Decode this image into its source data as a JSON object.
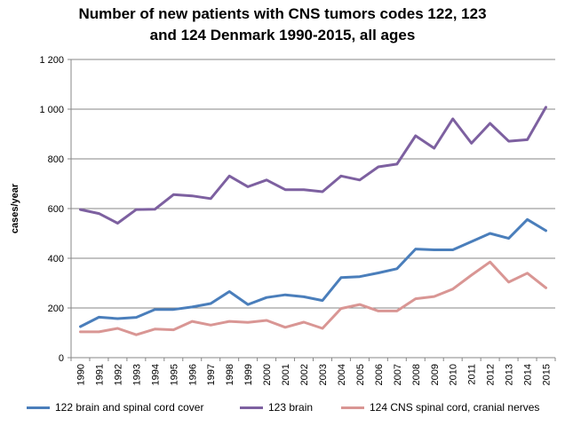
{
  "title_line1": "Number of new patients with CNS tumors codes 122, 123",
  "title_line2": "and 124 Denmark 1990-2015, all ages",
  "chart_data": {
    "type": "line",
    "title": "Number of new patients with CNS tumors codes 122, 123 and 124 Denmark 1990-2015, all ages",
    "xlabel": "",
    "ylabel": "cases/year",
    "ylim": [
      0,
      1200
    ],
    "yticks": [
      0,
      200,
      400,
      600,
      800,
      1000,
      1200
    ],
    "ytick_labels": [
      "0",
      "200",
      "400",
      "600",
      "800",
      "1 000",
      "1 200"
    ],
    "grid": "horizontal",
    "legend_position": "bottom",
    "x": [
      "1990",
      "1991",
      "1992",
      "1993",
      "1994",
      "1995",
      "1996",
      "1997",
      "1998",
      "1999",
      "2000",
      "2001",
      "2002",
      "2003",
      "2004",
      "2005",
      "2006",
      "2007",
      "2008",
      "2009",
      "2010",
      "2011",
      "2012",
      "2013",
      "2014",
      "2015"
    ],
    "series": [
      {
        "name": "122 brain and spinal cord cover",
        "color": "#4A7EBB",
        "values": [
          125,
          163,
          157,
          162,
          194,
          194,
          204,
          218,
          266,
          214,
          242,
          253,
          245,
          230,
          322,
          326,
          341,
          358,
          437,
          434,
          434,
          467,
          500,
          480,
          556,
          511
        ]
      },
      {
        "name": "123 brain",
        "color": "#7D60A0",
        "values": [
          596,
          580,
          541,
          596,
          597,
          656,
          651,
          640,
          731,
          688,
          715,
          676,
          676,
          668,
          731,
          715,
          768,
          779,
          893,
          843,
          961,
          863,
          943,
          871,
          877,
          1008
        ]
      },
      {
        "name": "124 CNS spinal cord, cranial nerves",
        "color": "#D99694",
        "values": [
          104,
          104,
          118,
          92,
          115,
          112,
          146,
          131,
          146,
          142,
          150,
          122,
          143,
          118,
          198,
          214,
          188,
          188,
          237,
          246,
          276,
          332,
          385,
          304,
          340,
          281
        ]
      }
    ]
  }
}
